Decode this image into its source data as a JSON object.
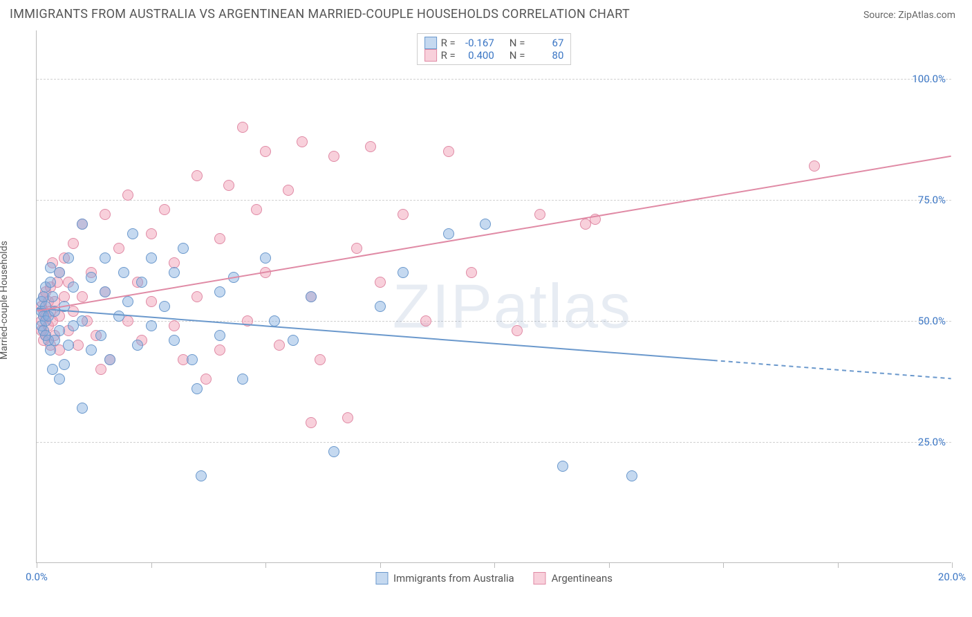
{
  "header": {
    "title": "IMMIGRANTS FROM AUSTRALIA VS ARGENTINEAN MARRIED-COUPLE HOUSEHOLDS CORRELATION CHART",
    "source_label": "Source: ",
    "source_value": "ZipAtlas.com"
  },
  "watermark": "ZIPatlas",
  "chart": {
    "type": "scatter",
    "ylabel": "Married-couple Households",
    "xlim": [
      0,
      20
    ],
    "ylim": [
      0,
      110
    ],
    "ytick_positions": [
      25,
      50,
      75,
      100
    ],
    "ytick_labels": [
      "25.0%",
      "50.0%",
      "75.0%",
      "100.0%"
    ],
    "ytick_color": "#3b76c4",
    "xtick_positions": [
      0,
      2.5,
      5,
      7.5,
      10,
      12.5,
      15,
      17.5,
      20
    ],
    "xtick_labels_shown": {
      "0": "0.0%",
      "20": "20.0%"
    },
    "xtick_color": "#3b76c4",
    "grid_color": "#d0d0d0",
    "background_color": "#ffffff",
    "axis_color": "#bbbbbb",
    "marker_radius": 8,
    "series": {
      "a": {
        "label": "Immigrants from Australia",
        "color_fill": "rgba(126, 170, 222, 0.45)",
        "color_stroke": "#6a98cc",
        "trend": {
          "x1": 0,
          "y1": 52.5,
          "x2": 20,
          "y2": 38,
          "solid_until_x": 14.8,
          "width": 2
        },
        "R": "-0.167",
        "N": "67",
        "points": [
          [
            0.1,
            49
          ],
          [
            0.1,
            52
          ],
          [
            0.1,
            54
          ],
          [
            0.15,
            48
          ],
          [
            0.15,
            51
          ],
          [
            0.15,
            55
          ],
          [
            0.2,
            47
          ],
          [
            0.2,
            50
          ],
          [
            0.2,
            53
          ],
          [
            0.2,
            57
          ],
          [
            0.25,
            46
          ],
          [
            0.25,
            51
          ],
          [
            0.3,
            44
          ],
          [
            0.3,
            58
          ],
          [
            0.3,
            61
          ],
          [
            0.35,
            40
          ],
          [
            0.35,
            55
          ],
          [
            0.4,
            46
          ],
          [
            0.4,
            52
          ],
          [
            0.5,
            38
          ],
          [
            0.5,
            48
          ],
          [
            0.5,
            60
          ],
          [
            0.6,
            41
          ],
          [
            0.6,
            53
          ],
          [
            0.7,
            45
          ],
          [
            0.7,
            63
          ],
          [
            0.8,
            49
          ],
          [
            0.8,
            57
          ],
          [
            1.0,
            32
          ],
          [
            1.0,
            50
          ],
          [
            1.0,
            70
          ],
          [
            1.2,
            44
          ],
          [
            1.2,
            59
          ],
          [
            1.4,
            47
          ],
          [
            1.5,
            56
          ],
          [
            1.5,
            63
          ],
          [
            1.6,
            42
          ],
          [
            1.8,
            51
          ],
          [
            1.9,
            60
          ],
          [
            2.0,
            54
          ],
          [
            2.1,
            68
          ],
          [
            2.2,
            45
          ],
          [
            2.3,
            58
          ],
          [
            2.5,
            49
          ],
          [
            2.5,
            63
          ],
          [
            2.8,
            53
          ],
          [
            3.0,
            46
          ],
          [
            3.0,
            60
          ],
          [
            3.2,
            65
          ],
          [
            3.4,
            42
          ],
          [
            3.5,
            36
          ],
          [
            3.6,
            18
          ],
          [
            4.0,
            56
          ],
          [
            4.0,
            47
          ],
          [
            4.3,
            59
          ],
          [
            4.5,
            38
          ],
          [
            5.0,
            63
          ],
          [
            5.2,
            50
          ],
          [
            5.6,
            46
          ],
          [
            6.0,
            55
          ],
          [
            6.5,
            23
          ],
          [
            7.5,
            53
          ],
          [
            8.0,
            60
          ],
          [
            9.0,
            68
          ],
          [
            11.5,
            20
          ],
          [
            13.0,
            18
          ],
          [
            9.8,
            70
          ]
        ]
      },
      "b": {
        "label": "Argentineans",
        "color_fill": "rgba(240, 150, 175, 0.45)",
        "color_stroke": "#e08aa5",
        "trend": {
          "x1": 0,
          "y1": 52,
          "x2": 20,
          "y2": 84,
          "solid_until_x": 20,
          "width": 2
        },
        "R": "0.400",
        "N": "80",
        "points": [
          [
            0.1,
            48
          ],
          [
            0.1,
            50
          ],
          [
            0.1,
            53
          ],
          [
            0.15,
            46
          ],
          [
            0.15,
            52
          ],
          [
            0.15,
            55
          ],
          [
            0.2,
            47
          ],
          [
            0.2,
            51
          ],
          [
            0.2,
            56
          ],
          [
            0.25,
            49
          ],
          [
            0.25,
            54
          ],
          [
            0.3,
            45
          ],
          [
            0.3,
            52
          ],
          [
            0.3,
            57
          ],
          [
            0.35,
            50
          ],
          [
            0.35,
            62
          ],
          [
            0.4,
            47
          ],
          [
            0.4,
            54
          ],
          [
            0.45,
            58
          ],
          [
            0.5,
            44
          ],
          [
            0.5,
            51
          ],
          [
            0.5,
            60
          ],
          [
            0.6,
            55
          ],
          [
            0.6,
            63
          ],
          [
            0.7,
            48
          ],
          [
            0.7,
            58
          ],
          [
            0.8,
            52
          ],
          [
            0.8,
            66
          ],
          [
            0.9,
            45
          ],
          [
            1.0,
            55
          ],
          [
            1.0,
            70
          ],
          [
            1.1,
            50
          ],
          [
            1.2,
            60
          ],
          [
            1.3,
            47
          ],
          [
            1.5,
            56
          ],
          [
            1.5,
            72
          ],
          [
            1.6,
            42
          ],
          [
            1.8,
            65
          ],
          [
            2.0,
            50
          ],
          [
            2.0,
            76
          ],
          [
            2.2,
            58
          ],
          [
            2.3,
            46
          ],
          [
            2.5,
            68
          ],
          [
            2.5,
            54
          ],
          [
            2.8,
            73
          ],
          [
            3.0,
            49
          ],
          [
            3.0,
            62
          ],
          [
            3.2,
            42
          ],
          [
            3.5,
            80
          ],
          [
            3.5,
            55
          ],
          [
            3.7,
            38
          ],
          [
            4.0,
            67
          ],
          [
            4.2,
            78
          ],
          [
            4.5,
            90
          ],
          [
            4.6,
            50
          ],
          [
            4.8,
            73
          ],
          [
            5.0,
            85
          ],
          [
            5.0,
            60
          ],
          [
            5.3,
            45
          ],
          [
            5.5,
            77
          ],
          [
            5.8,
            87
          ],
          [
            6.0,
            55
          ],
          [
            6.2,
            42
          ],
          [
            6.5,
            84
          ],
          [
            6.8,
            30
          ],
          [
            7.0,
            65
          ],
          [
            7.3,
            86
          ],
          [
            7.5,
            58
          ],
          [
            8.0,
            72
          ],
          [
            8.5,
            50
          ],
          [
            9.0,
            85
          ],
          [
            9.5,
            60
          ],
          [
            10.5,
            48
          ],
          [
            11.0,
            72
          ],
          [
            12.0,
            70
          ],
          [
            12.2,
            71
          ],
          [
            17.0,
            82
          ],
          [
            6.0,
            29
          ],
          [
            4.0,
            44
          ],
          [
            1.4,
            40
          ]
        ]
      }
    },
    "legend_top": {
      "R_label": "R =",
      "N_label": "N ="
    }
  }
}
